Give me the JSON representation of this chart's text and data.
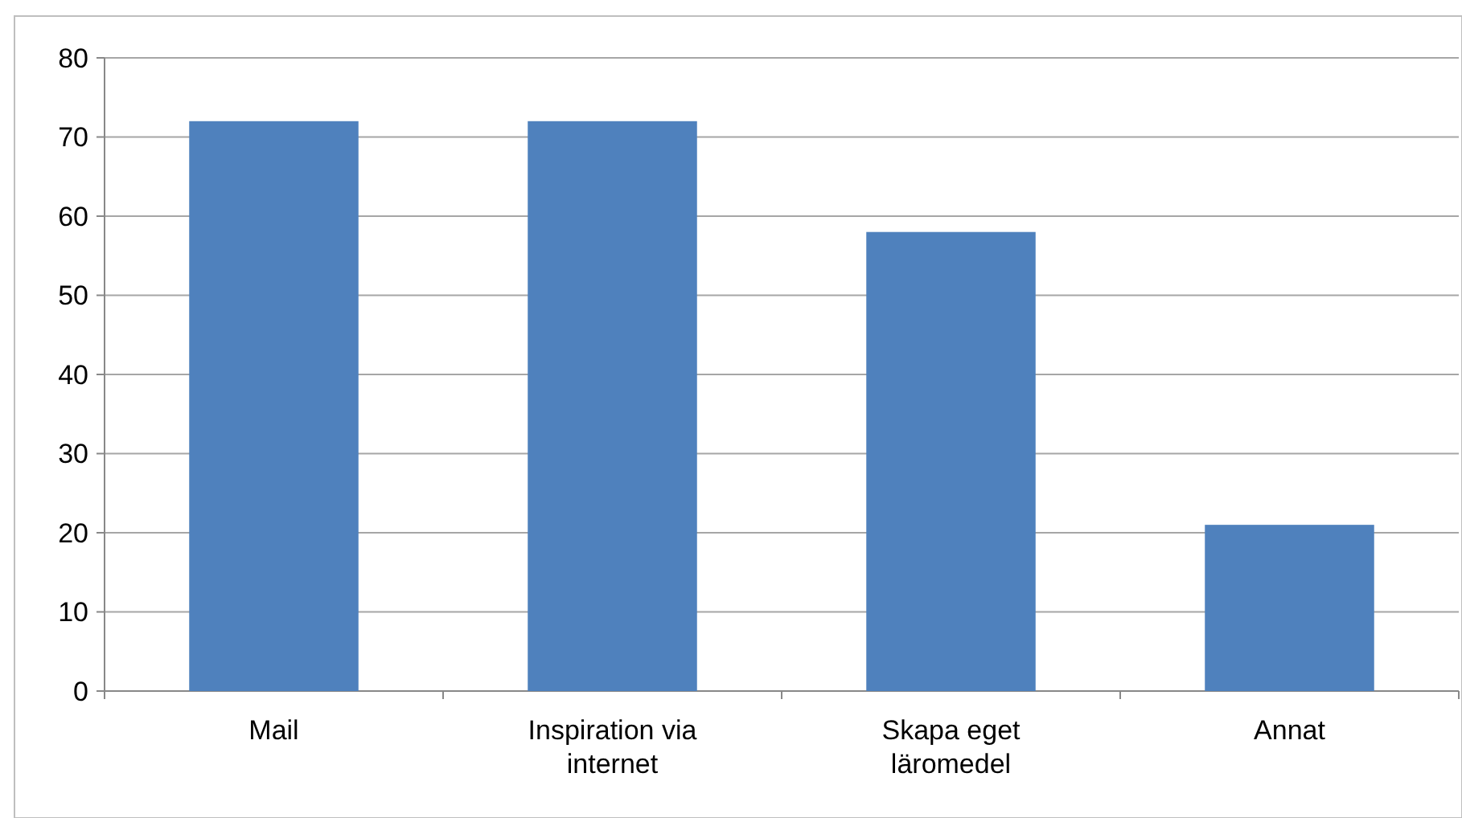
{
  "chart_data": {
    "type": "bar",
    "categories": [
      "Mail",
      "Inspiration via internet",
      "Skapa eget läromedel",
      "Annat"
    ],
    "values": [
      72,
      72,
      58,
      21
    ],
    "color": "#4f81bd",
    "ylim": [
      0,
      80
    ],
    "yticks": [
      0,
      10,
      20,
      30,
      40,
      50,
      60,
      70,
      80
    ],
    "grid": "y"
  }
}
